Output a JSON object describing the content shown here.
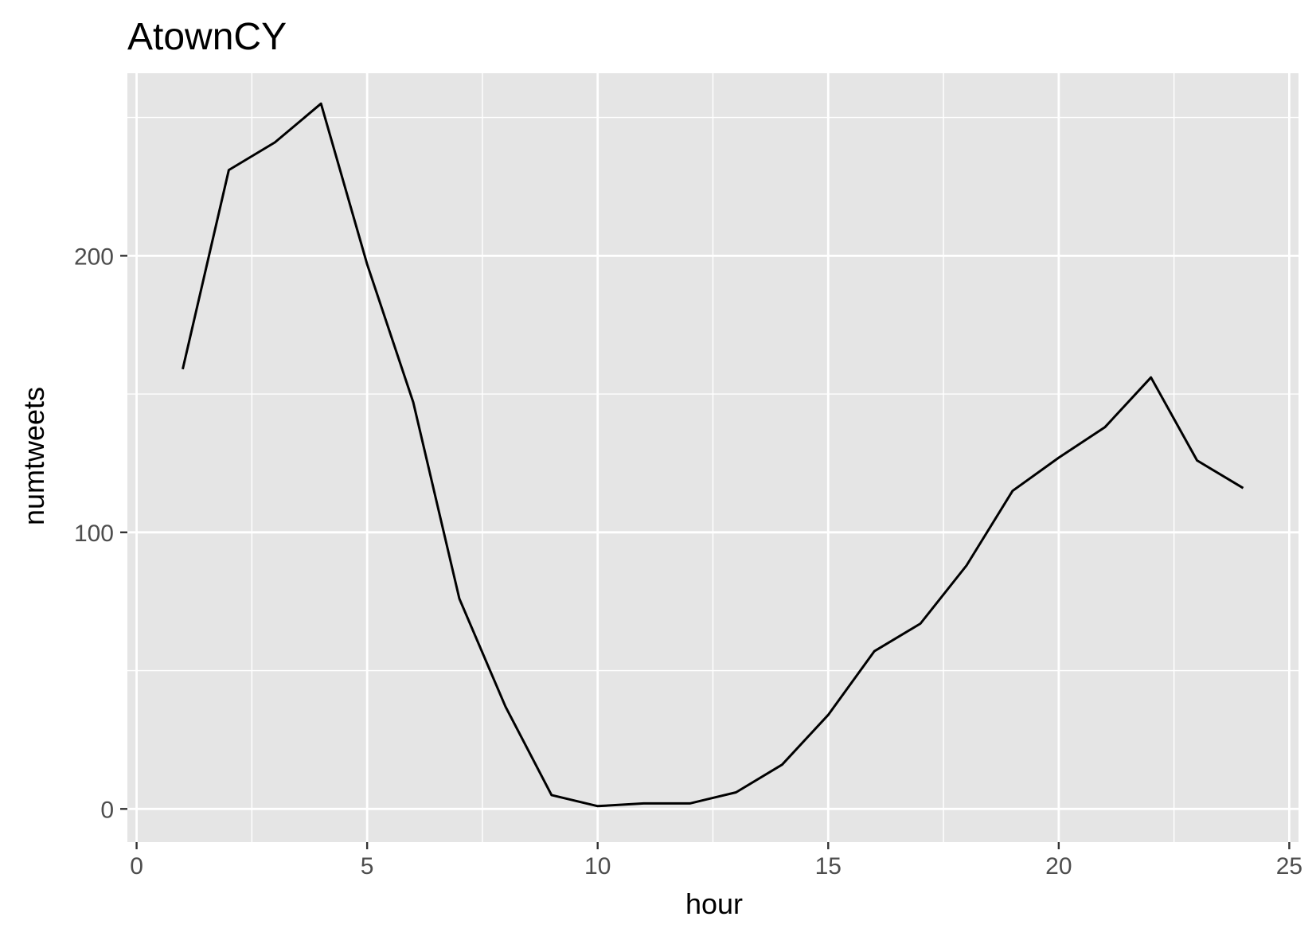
{
  "chart_data": {
    "type": "line",
    "title": "AtownCY",
    "xlabel": "hour",
    "ylabel": "numtweets",
    "xlim": [
      -0.2,
      25.2
    ],
    "ylim": [
      -12,
      266
    ],
    "x_ticks": [
      0,
      5,
      10,
      15,
      20,
      25
    ],
    "x_tick_labels": [
      "0",
      "5",
      "10",
      "15",
      "20",
      "25"
    ],
    "x_minor_ticks": [
      2.5,
      7.5,
      12.5,
      17.5,
      22.5
    ],
    "y_ticks": [
      0,
      100,
      200
    ],
    "y_tick_labels": [
      "0",
      "100",
      "200"
    ],
    "y_minor_ticks": [
      50,
      150,
      250
    ],
    "grid": true,
    "panel_background": "#e5e5e5",
    "grid_color": "#ffffff",
    "line_color": "#000000",
    "series": [
      {
        "x": [
          1,
          2,
          3,
          4,
          5,
          6,
          7,
          8,
          9,
          10,
          11,
          12,
          13,
          14,
          15,
          16,
          17,
          18,
          19,
          20,
          21,
          22,
          23,
          24
        ],
        "values": [
          159,
          231,
          241,
          255,
          197,
          147,
          76,
          37,
          5,
          1,
          2,
          2,
          6,
          16,
          34,
          57,
          67,
          88,
          115,
          127,
          138,
          156,
          126,
          116
        ]
      }
    ]
  }
}
